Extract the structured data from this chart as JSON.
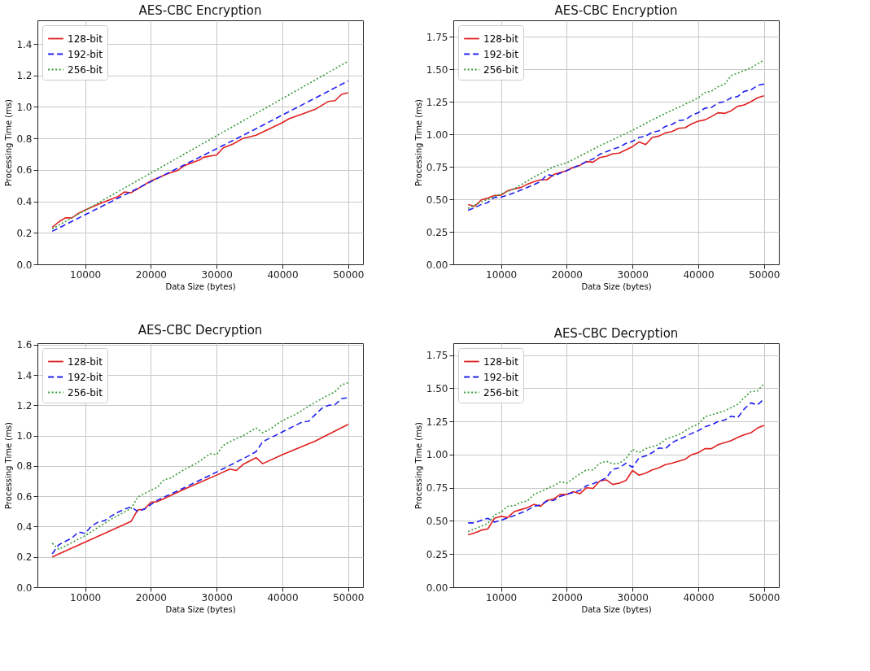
{
  "chart_data": [
    {
      "type": "line",
      "title": "AES-CBC Encryption",
      "xlabel": "Data Size (bytes)",
      "ylabel": "Processing Time (ms)",
      "xlim": [
        2750,
        52250
      ],
      "ylim": [
        0,
        1.55
      ],
      "xticks": [
        10000,
        20000,
        30000,
        40000,
        50000
      ],
      "yticks": [
        {
          "value": 0,
          "label": "0.0"
        },
        {
          "value": 0.2,
          "label": "0.2"
        },
        {
          "value": 0.4,
          "label": "0.4"
        },
        {
          "value": 0.6,
          "label": "0.6"
        },
        {
          "value": 0.8,
          "label": "0.8"
        },
        {
          "value": 1.0,
          "label": "1.0"
        },
        {
          "value": 1.2,
          "label": "1.2"
        },
        {
          "value": 1.4,
          "label": "1.4"
        }
      ],
      "grid": true,
      "legend": "top left",
      "series": [
        {
          "name": "128-bit",
          "color": "#e02020",
          "line_style": "solid",
          "x": [
            5000,
            6000,
            7000,
            8000,
            9000,
            10000,
            12500,
            15000,
            16000,
            17000,
            18000,
            20000,
            22500,
            24000,
            25000,
            27500,
            28000,
            30000,
            31000,
            32500,
            34000,
            36000,
            38000,
            40000,
            41000,
            43000,
            45000,
            47000,
            48000,
            49000,
            50000
          ],
          "values": [
            0.235,
            0.27,
            0.295,
            0.295,
            0.325,
            0.345,
            0.39,
            0.43,
            0.46,
            0.455,
            0.48,
            0.53,
            0.575,
            0.595,
            0.625,
            0.665,
            0.68,
            0.695,
            0.74,
            0.765,
            0.8,
            0.82,
            0.86,
            0.9,
            0.925,
            0.955,
            0.985,
            1.035,
            1.04,
            1.08,
            1.09
          ]
        },
        {
          "name": "192-bit",
          "color": "#2020f0",
          "line_style": "dashed",
          "x": [
            5000,
            20000,
            35000,
            50000
          ],
          "values": [
            0.21,
            0.525,
            0.84,
            1.165
          ]
        },
        {
          "name": "256-bit",
          "color": "#3a9a3a",
          "line_style": "dotted",
          "x": [
            5000,
            20000,
            35000,
            50000
          ],
          "values": [
            0.225,
            0.58,
            0.935,
            1.29
          ]
        }
      ]
    },
    {
      "type": "line",
      "title": "AES-CBC Encryption",
      "xlabel": "Data Size (bytes)",
      "ylabel": "Processing Time (ms)",
      "xlim": [
        2750,
        52250
      ],
      "ylim": [
        0,
        1.875
      ],
      "xticks": [
        10000,
        20000,
        30000,
        40000,
        50000
      ],
      "yticks": [
        {
          "value": 0,
          "label": "0.00"
        },
        {
          "value": 0.25,
          "label": "0.25"
        },
        {
          "value": 0.5,
          "label": "0.50"
        },
        {
          "value": 0.75,
          "label": "0.75"
        },
        {
          "value": 1.0,
          "label": "1.00"
        },
        {
          "value": 1.25,
          "label": "1.25"
        },
        {
          "value": 1.5,
          "label": "1.50"
        },
        {
          "value": 1.75,
          "label": "1.75"
        }
      ],
      "grid": true,
      "legend": "top left",
      "series": [
        {
          "name": "128-bit",
          "color": "#e02020",
          "line_style": "solid",
          "x": [
            5000,
            6000,
            7000,
            8000,
            9000,
            10000,
            11000,
            12000,
            13000,
            14000,
            15000,
            16000,
            17000,
            18000,
            20000,
            21000,
            22000,
            23000,
            24000,
            25000,
            26000,
            27000,
            28000,
            29000,
            30000,
            31000,
            32000,
            33000,
            34000,
            35000,
            36000,
            37000,
            38000,
            39000,
            40000,
            41000,
            42000,
            43000,
            44000,
            45000,
            46000,
            47000,
            48000,
            49000,
            50000
          ],
          "values": [
            0.46,
            0.445,
            0.495,
            0.51,
            0.53,
            0.53,
            0.565,
            0.58,
            0.59,
            0.615,
            0.635,
            0.65,
            0.65,
            0.69,
            0.72,
            0.745,
            0.76,
            0.79,
            0.785,
            0.82,
            0.83,
            0.85,
            0.855,
            0.88,
            0.905,
            0.94,
            0.92,
            0.975,
            0.985,
            1.01,
            1.02,
            1.045,
            1.05,
            1.08,
            1.1,
            1.11,
            1.135,
            1.165,
            1.16,
            1.18,
            1.215,
            1.225,
            1.25,
            1.28,
            1.295
          ]
        },
        {
          "name": "192-bit",
          "color": "#2020f0",
          "line_style": "dashed",
          "x": [
            5000,
            6000,
            7000,
            8000,
            9000,
            10000,
            12000,
            14000,
            16000,
            17000,
            18000,
            20000,
            22000,
            23000,
            24000,
            25000,
            27000,
            28000,
            29000,
            30000,
            31000,
            32000,
            33000,
            34000,
            35000,
            36000,
            37000,
            38000,
            39000,
            40000,
            41000,
            42000,
            43000,
            44000,
            45000,
            46000,
            47000,
            48000,
            49000,
            50000
          ],
          "values": [
            0.415,
            0.435,
            0.46,
            0.475,
            0.515,
            0.515,
            0.55,
            0.59,
            0.635,
            0.69,
            0.68,
            0.72,
            0.765,
            0.79,
            0.81,
            0.845,
            0.885,
            0.9,
            0.93,
            0.945,
            0.975,
            0.985,
            1.015,
            1.025,
            1.06,
            1.075,
            1.105,
            1.11,
            1.145,
            1.165,
            1.2,
            1.205,
            1.24,
            1.25,
            1.28,
            1.29,
            1.33,
            1.34,
            1.375,
            1.385
          ]
        },
        {
          "name": "256-bit",
          "color": "#3a9a3a",
          "line_style": "dotted",
          "x": [
            5000,
            7000,
            10000,
            12000,
            15000,
            18000,
            20000,
            25000,
            30000,
            33000,
            35000,
            38000,
            40000,
            41000,
            42000,
            43000,
            44000,
            45000,
            46000,
            47000,
            48000,
            50000
          ],
          "values": [
            0.43,
            0.48,
            0.54,
            0.58,
            0.67,
            0.75,
            0.78,
            0.91,
            1.03,
            1.11,
            1.16,
            1.23,
            1.28,
            1.32,
            1.33,
            1.365,
            1.385,
            1.45,
            1.47,
            1.49,
            1.51,
            1.57
          ]
        }
      ]
    },
    {
      "type": "line",
      "title": "AES-CBC Decryption",
      "xlabel": "Data Size (bytes)",
      "ylabel": "Processing Time (ms)",
      "xlim": [
        2750,
        52250
      ],
      "ylim": [
        0,
        1.61
      ],
      "xticks": [
        10000,
        20000,
        30000,
        40000,
        50000
      ],
      "yticks": [
        {
          "value": 0,
          "label": "0.0"
        },
        {
          "value": 0.2,
          "label": "0.2"
        },
        {
          "value": 0.4,
          "label": "0.4"
        },
        {
          "value": 0.6,
          "label": "0.6"
        },
        {
          "value": 0.8,
          "label": "0.8"
        },
        {
          "value": 1.0,
          "label": "1.0"
        },
        {
          "value": 1.2,
          "label": "1.2"
        },
        {
          "value": 1.4,
          "label": "1.4"
        },
        {
          "value": 1.6,
          "label": "1.6"
        }
      ],
      "grid": true,
      "legend": "top left",
      "series": [
        {
          "name": "128-bit",
          "color": "#e02020",
          "line_style": "solid",
          "x": [
            5000,
            17000,
            18000,
            19000,
            20000,
            21000,
            25000,
            30000,
            32000,
            33000,
            34000,
            36000,
            37000,
            40000,
            45000,
            50000
          ],
          "values": [
            0.2,
            0.435,
            0.51,
            0.515,
            0.56,
            0.565,
            0.645,
            0.74,
            0.78,
            0.77,
            0.81,
            0.855,
            0.815,
            0.875,
            0.965,
            1.075
          ]
        },
        {
          "name": "192-bit",
          "color": "#2020f0",
          "line_style": "dashed",
          "x": [
            5000,
            6000,
            8000,
            9000,
            10000,
            11000,
            12000,
            13000,
            14000,
            15000,
            16000,
            17000,
            18000,
            19000,
            20000,
            21000,
            25000,
            30000,
            35000,
            36000,
            37000,
            40000,
            43000,
            44000,
            45000,
            46000,
            47000,
            48000,
            49000,
            50000
          ],
          "values": [
            0.22,
            0.28,
            0.325,
            0.365,
            0.355,
            0.405,
            0.43,
            0.44,
            0.47,
            0.495,
            0.515,
            0.53,
            0.5,
            0.515,
            0.545,
            0.575,
            0.655,
            0.76,
            0.87,
            0.895,
            0.96,
            1.025,
            1.09,
            1.095,
            1.14,
            1.18,
            1.2,
            1.205,
            1.245,
            1.25
          ]
        },
        {
          "name": "256-bit",
          "color": "#3a9a3a",
          "line_style": "dotted",
          "x": [
            5000,
            6000,
            10000,
            14000,
            17000,
            18000,
            20000,
            21000,
            22000,
            23000,
            25000,
            27000,
            29000,
            30000,
            31000,
            32000,
            34000,
            36000,
            37000,
            38000,
            40000,
            42000,
            44000,
            46000,
            48000,
            49000,
            50000
          ],
          "values": [
            0.29,
            0.25,
            0.34,
            0.45,
            0.52,
            0.595,
            0.64,
            0.66,
            0.71,
            0.72,
            0.775,
            0.82,
            0.88,
            0.875,
            0.935,
            0.96,
            1.0,
            1.05,
            1.02,
            1.04,
            1.1,
            1.14,
            1.195,
            1.245,
            1.29,
            1.335,
            1.35
          ]
        }
      ]
    },
    {
      "type": "line",
      "title": "AES-CBC Decryption",
      "xlabel": "Data Size (bytes)",
      "ylabel": "Processing Time (ms)",
      "xlim": [
        2750,
        52250
      ],
      "ylim": [
        0,
        1.84
      ],
      "xticks": [
        10000,
        20000,
        30000,
        40000,
        50000
      ],
      "yticks": [
        {
          "value": 0,
          "label": "0.00"
        },
        {
          "value": 0.25,
          "label": "0.25"
        },
        {
          "value": 0.5,
          "label": "0.50"
        },
        {
          "value": 0.75,
          "label": "0.75"
        },
        {
          "value": 1.0,
          "label": "1.00"
        },
        {
          "value": 1.25,
          "label": "1.25"
        },
        {
          "value": 1.5,
          "label": "1.50"
        },
        {
          "value": 1.75,
          "label": "1.75"
        }
      ],
      "grid": true,
      "legend": "top left",
      "series": [
        {
          "name": "128-bit",
          "color": "#e02020",
          "line_style": "solid",
          "x": [
            5000,
            6000,
            7000,
            8000,
            9000,
            10000,
            11000,
            12000,
            13000,
            14000,
            15000,
            16000,
            17000,
            18000,
            19000,
            20000,
            21000,
            22000,
            23000,
            24000,
            25000,
            26000,
            27000,
            28000,
            29000,
            30000,
            31000,
            32000,
            33000,
            34000,
            35000,
            36000,
            37000,
            38000,
            39000,
            40000,
            41000,
            42000,
            43000,
            44000,
            45000,
            46000,
            47000,
            48000,
            49000,
            50000
          ],
          "values": [
            0.395,
            0.41,
            0.43,
            0.44,
            0.52,
            0.535,
            0.525,
            0.57,
            0.585,
            0.6,
            0.625,
            0.61,
            0.655,
            0.665,
            0.7,
            0.7,
            0.72,
            0.705,
            0.75,
            0.745,
            0.8,
            0.81,
            0.775,
            0.785,
            0.805,
            0.88,
            0.845,
            0.86,
            0.885,
            0.9,
            0.925,
            0.935,
            0.95,
            0.965,
            1.0,
            1.015,
            1.045,
            1.045,
            1.075,
            1.09,
            1.105,
            1.13,
            1.15,
            1.165,
            1.2,
            1.22
          ]
        },
        {
          "name": "192-bit",
          "color": "#2020f0",
          "line_style": "dashed",
          "x": [
            5000,
            6000,
            7000,
            8000,
            9000,
            10000,
            12000,
            14000,
            15000,
            16000,
            17000,
            18000,
            19000,
            20000,
            22000,
            23000,
            24000,
            25000,
            26000,
            27000,
            28000,
            29000,
            30000,
            31000,
            32000,
            33000,
            34000,
            35000,
            36000,
            37000,
            38000,
            39000,
            40000,
            41000,
            42000,
            43000,
            44000,
            45000,
            46000,
            47000,
            48000,
            49000,
            50000
          ],
          "values": [
            0.485,
            0.485,
            0.505,
            0.52,
            0.49,
            0.505,
            0.54,
            0.58,
            0.61,
            0.62,
            0.65,
            0.655,
            0.685,
            0.7,
            0.73,
            0.765,
            0.78,
            0.8,
            0.825,
            0.89,
            0.9,
            0.935,
            0.905,
            0.975,
            0.99,
            1.015,
            1.05,
            1.045,
            1.09,
            1.115,
            1.135,
            1.16,
            1.18,
            1.21,
            1.225,
            1.25,
            1.26,
            1.29,
            1.28,
            1.345,
            1.39,
            1.375,
            1.42
          ]
        },
        {
          "name": "256-bit",
          "color": "#3a9a3a",
          "line_style": "dotted",
          "x": [
            5000,
            7000,
            8000,
            9000,
            10000,
            11000,
            12000,
            13000,
            14000,
            15000,
            16000,
            17000,
            18000,
            19000,
            20000,
            21000,
            22000,
            23000,
            24000,
            25000,
            26000,
            27000,
            28000,
            29000,
            30000,
            31000,
            32000,
            34000,
            35000,
            37000,
            38000,
            39000,
            40000,
            41000,
            42000,
            44000,
            46000,
            47000,
            48000,
            49000,
            50000
          ],
          "values": [
            0.42,
            0.46,
            0.48,
            0.545,
            0.565,
            0.61,
            0.615,
            0.64,
            0.65,
            0.7,
            0.72,
            0.745,
            0.765,
            0.795,
            0.785,
            0.82,
            0.855,
            0.885,
            0.885,
            0.935,
            0.95,
            0.93,
            0.935,
            0.97,
            1.04,
            1.015,
            1.045,
            1.075,
            1.115,
            1.15,
            1.18,
            1.21,
            1.23,
            1.285,
            1.3,
            1.33,
            1.38,
            1.43,
            1.475,
            1.48,
            1.535
          ]
        }
      ]
    }
  ]
}
